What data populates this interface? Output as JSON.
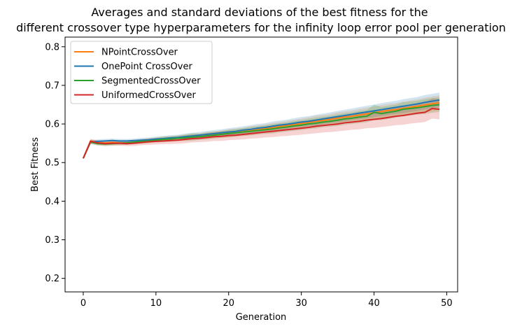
{
  "chart_data": {
    "type": "line",
    "title_line1": "Averages and standard deviations of the best fitness for the",
    "title_line2": "different crossover type hyperparameters for the infinity loop error pool per generation",
    "xlabel": "Generation",
    "ylabel": "Best Fitness",
    "xlim": [
      -2.5,
      51.5
    ],
    "ylim": [
      0.165,
      0.825
    ],
    "xticks": [
      0,
      10,
      20,
      30,
      40,
      50
    ],
    "yticks": [
      0.2,
      0.3,
      0.4,
      0.5,
      0.6,
      0.7,
      0.8
    ],
    "xtick_labels": [
      "0",
      "10",
      "20",
      "30",
      "40",
      "50"
    ],
    "ytick_labels": [
      "0.2",
      "0.3",
      "0.4",
      "0.5",
      "0.6",
      "0.7",
      "0.8"
    ],
    "grid": false,
    "legend_position": "top-left",
    "x": [
      0,
      1,
      2,
      3,
      4,
      5,
      6,
      7,
      8,
      9,
      10,
      11,
      12,
      13,
      14,
      15,
      16,
      17,
      18,
      19,
      20,
      21,
      22,
      23,
      24,
      25,
      26,
      27,
      28,
      29,
      30,
      31,
      32,
      33,
      34,
      35,
      36,
      37,
      38,
      39,
      40,
      41,
      42,
      43,
      44,
      45,
      46,
      47,
      48,
      49
    ],
    "series": [
      {
        "name": "NPointCrossOver",
        "color": "#ff7f0e",
        "values": [
          0.511,
          0.556,
          0.552,
          0.551,
          0.552,
          0.551,
          0.551,
          0.553,
          0.555,
          0.557,
          0.559,
          0.561,
          0.562,
          0.563,
          0.565,
          0.567,
          0.568,
          0.57,
          0.572,
          0.574,
          0.576,
          0.578,
          0.58,
          0.583,
          0.585,
          0.588,
          0.59,
          0.593,
          0.596,
          0.598,
          0.601,
          0.604,
          0.607,
          0.609,
          0.612,
          0.615,
          0.618,
          0.62,
          0.623,
          0.626,
          0.629,
          0.632,
          0.635,
          0.637,
          0.64,
          0.643,
          0.646,
          0.649,
          0.652,
          0.655
        ],
        "std": [
          0.002,
          0.005,
          0.005,
          0.005,
          0.005,
          0.005,
          0.005,
          0.005,
          0.006,
          0.006,
          0.006,
          0.007,
          0.007,
          0.007,
          0.008,
          0.008,
          0.008,
          0.009,
          0.009,
          0.009,
          0.01,
          0.01,
          0.01,
          0.011,
          0.011,
          0.011,
          0.012,
          0.012,
          0.012,
          0.013,
          0.013,
          0.013,
          0.014,
          0.014,
          0.014,
          0.015,
          0.015,
          0.015,
          0.016,
          0.016,
          0.016,
          0.017,
          0.017,
          0.017,
          0.018,
          0.018,
          0.018,
          0.019,
          0.019,
          0.019
        ]
      },
      {
        "name": "OnePoint CrossOver",
        "color": "#1f77b4",
        "values": [
          0.511,
          0.553,
          0.555,
          0.556,
          0.557,
          0.556,
          0.556,
          0.557,
          0.558,
          0.559,
          0.561,
          0.562,
          0.564,
          0.565,
          0.567,
          0.569,
          0.571,
          0.573,
          0.575,
          0.577,
          0.579,
          0.581,
          0.584,
          0.586,
          0.589,
          0.591,
          0.594,
          0.597,
          0.599,
          0.602,
          0.605,
          0.607,
          0.61,
          0.613,
          0.616,
          0.619,
          0.622,
          0.625,
          0.628,
          0.631,
          0.634,
          0.637,
          0.64,
          0.643,
          0.646,
          0.649,
          0.652,
          0.656,
          0.659,
          0.662
        ],
        "std": [
          0.002,
          0.005,
          0.005,
          0.005,
          0.005,
          0.005,
          0.005,
          0.005,
          0.006,
          0.006,
          0.006,
          0.007,
          0.007,
          0.007,
          0.008,
          0.008,
          0.008,
          0.009,
          0.009,
          0.009,
          0.01,
          0.01,
          0.01,
          0.011,
          0.011,
          0.011,
          0.012,
          0.012,
          0.012,
          0.013,
          0.013,
          0.013,
          0.014,
          0.014,
          0.014,
          0.015,
          0.015,
          0.015,
          0.016,
          0.016,
          0.016,
          0.017,
          0.017,
          0.017,
          0.018,
          0.018,
          0.018,
          0.019,
          0.019,
          0.019
        ]
      },
      {
        "name": "SegmentedCrossOver",
        "color": "#2ca02c",
        "values": [
          0.511,
          0.553,
          0.549,
          0.548,
          0.549,
          0.55,
          0.551,
          0.553,
          0.555,
          0.556,
          0.558,
          0.56,
          0.561,
          0.563,
          0.564,
          0.566,
          0.567,
          0.569,
          0.571,
          0.573,
          0.575,
          0.577,
          0.579,
          0.581,
          0.583,
          0.585,
          0.587,
          0.59,
          0.592,
          0.595,
          0.597,
          0.6,
          0.602,
          0.605,
          0.607,
          0.61,
          0.613,
          0.615,
          0.618,
          0.62,
          0.63,
          0.627,
          0.63,
          0.633,
          0.638,
          0.64,
          0.642,
          0.645,
          0.648,
          0.65
        ],
        "std": [
          0.002,
          0.005,
          0.005,
          0.005,
          0.005,
          0.005,
          0.005,
          0.005,
          0.006,
          0.006,
          0.006,
          0.007,
          0.007,
          0.007,
          0.008,
          0.01,
          0.008,
          0.009,
          0.009,
          0.009,
          0.01,
          0.01,
          0.01,
          0.011,
          0.011,
          0.011,
          0.012,
          0.012,
          0.012,
          0.013,
          0.013,
          0.013,
          0.014,
          0.014,
          0.014,
          0.015,
          0.015,
          0.015,
          0.016,
          0.016,
          0.02,
          0.017,
          0.017,
          0.017,
          0.018,
          0.018,
          0.018,
          0.019,
          0.019,
          0.019
        ]
      },
      {
        "name": "UniformedCrossOver",
        "color": "#d62728",
        "values": [
          0.511,
          0.555,
          0.551,
          0.549,
          0.55,
          0.55,
          0.549,
          0.55,
          0.552,
          0.554,
          0.555,
          0.556,
          0.557,
          0.558,
          0.56,
          0.562,
          0.563,
          0.565,
          0.567,
          0.568,
          0.57,
          0.571,
          0.573,
          0.575,
          0.577,
          0.579,
          0.581,
          0.583,
          0.585,
          0.587,
          0.589,
          0.591,
          0.594,
          0.596,
          0.598,
          0.6,
          0.603,
          0.605,
          0.607,
          0.61,
          0.612,
          0.614,
          0.617,
          0.62,
          0.622,
          0.625,
          0.628,
          0.63,
          0.64,
          0.638
        ],
        "std": [
          0.002,
          0.006,
          0.006,
          0.006,
          0.006,
          0.006,
          0.006,
          0.007,
          0.007,
          0.008,
          0.008,
          0.008,
          0.009,
          0.009,
          0.01,
          0.01,
          0.01,
          0.011,
          0.011,
          0.012,
          0.012,
          0.012,
          0.013,
          0.013,
          0.014,
          0.014,
          0.015,
          0.015,
          0.016,
          0.016,
          0.017,
          0.017,
          0.018,
          0.018,
          0.019,
          0.019,
          0.02,
          0.02,
          0.021,
          0.021,
          0.022,
          0.022,
          0.023,
          0.023,
          0.024,
          0.024,
          0.025,
          0.025,
          0.026,
          0.026
        ]
      }
    ]
  }
}
